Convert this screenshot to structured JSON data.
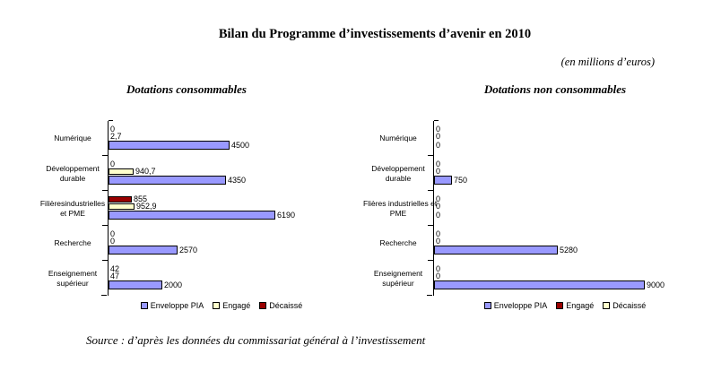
{
  "page": {
    "title": "Bilan du Programme d’investissements d’avenir en 2010",
    "unit_note": "(en millions d’euros)",
    "source": "Source : d’après les données du commissariat général à l’investissement"
  },
  "chart_data": [
    {
      "type": "bar",
      "orientation": "horizontal",
      "title": "Dotations consommables",
      "categories": [
        "Numérique",
        "Développement durable",
        "Filières industrielles et PME",
        "Recherche",
        "Enseignement supérieur"
      ],
      "category_label_lines": [
        [
          "Numérique"
        ],
        [
          "Développement",
          "durable"
        ],
        [
          "Filièresindustrielles",
          "et PME"
        ],
        [
          "Recherche"
        ],
        [
          "Enseignement",
          "supérieur"
        ]
      ],
      "series_display_order_top_to_bottom": [
        "Décaissé",
        "Engagé",
        "Enveloppe PIA"
      ],
      "series": [
        {
          "name": "Décaissé",
          "color": "#990000",
          "values": [
            0,
            0,
            855,
            0,
            42
          ],
          "labels": [
            "0",
            "0",
            "855",
            "0",
            "42"
          ]
        },
        {
          "name": "Engagé",
          "color": "#FFFFCC",
          "values": [
            2.7,
            940.7,
            952.9,
            0,
            47
          ],
          "labels": [
            "2,7",
            "940,7",
            "952,9",
            "0",
            "47"
          ]
        },
        {
          "name": "Enveloppe PIA",
          "color": "#9999FF",
          "values": [
            4500,
            4350,
            6190,
            2570,
            2000
          ],
          "labels": [
            "4500",
            "4350",
            "6190",
            "2570",
            "2000"
          ]
        }
      ],
      "legend": [
        {
          "label": "Enveloppe PIA",
          "color": "#9999FF"
        },
        {
          "label": "Engagé",
          "color": "#FFFFCC"
        },
        {
          "label": "Décaissé",
          "color": "#990000"
        }
      ],
      "x_axis_visible": false,
      "xlim": [
        0,
        6600
      ],
      "grid": false,
      "legend_position": "bottom"
    },
    {
      "type": "bar",
      "orientation": "horizontal",
      "title": "Dotations non consommables",
      "categories": [
        "Numérique",
        "Développement durable",
        "Filières industrielles et PME",
        "Recherche",
        "Enseignement supérieur"
      ],
      "category_label_lines": [
        [
          "Numérique"
        ],
        [
          "Développement",
          "durable"
        ],
        [
          "Flières industrielles et",
          "PME"
        ],
        [
          "Recherche"
        ],
        [
          "Enseignement",
          "supérieur"
        ]
      ],
      "series_display_order_top_to_bottom": [
        "Décaissé",
        "Engagé",
        "Enveloppe PIA"
      ],
      "series": [
        {
          "name": "Décaissé",
          "color": "#FFFFCC",
          "values": [
            0,
            0,
            0,
            0,
            0
          ],
          "labels": [
            "0",
            "0",
            "0",
            "0",
            "0"
          ]
        },
        {
          "name": "Engagé",
          "color": "#990000",
          "values": [
            0,
            0,
            0,
            0,
            0
          ],
          "labels": [
            "0",
            "0",
            "0",
            "0",
            "0"
          ]
        },
        {
          "name": "Enveloppe PIA",
          "color": "#9999FF",
          "values": [
            0,
            750,
            0,
            5280,
            9000
          ],
          "labels": [
            "0",
            "750",
            "0",
            "5280",
            "9000"
          ]
        }
      ],
      "legend": [
        {
          "label": "Enveloppe PIA",
          "color": "#9999FF"
        },
        {
          "label": "Engagé",
          "color": "#990000"
        },
        {
          "label": "Décaissé",
          "color": "#FFFFCC"
        }
      ],
      "x_axis_visible": false,
      "xlim": [
        0,
        9400
      ],
      "grid": false,
      "legend_position": "bottom"
    }
  ]
}
